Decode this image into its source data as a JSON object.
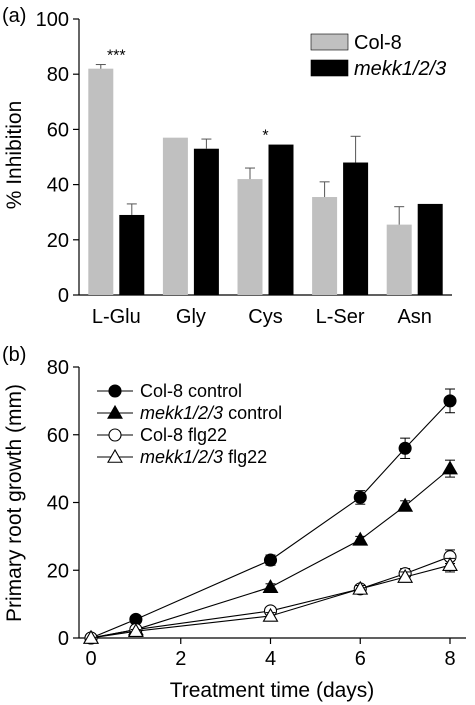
{
  "panels": [
    {
      "label": "(a)",
      "chart_data": {
        "type": "bar",
        "ylabel": "% Inhibition",
        "xlabel": "",
        "ylim": [
          0,
          100
        ],
        "yticks": [
          "0",
          "20",
          "40",
          "60",
          "80",
          "100"
        ],
        "categories": [
          "L-Glu",
          "Gly",
          "Cys",
          "L-Ser",
          "Asn"
        ],
        "series": [
          {
            "name": "Col-8",
            "color": "#c0c0c0",
            "values": [
              82,
              57,
              42,
              35.5,
              25.5
            ],
            "errors": [
              1.5,
              0,
              4,
              5.5,
              6.5
            ]
          },
          {
            "name": "mekk1/2/3",
            "color": "#000000",
            "values": [
              29,
              53,
              54.5,
              48,
              33
            ],
            "errors": [
              4,
              3.5,
              0,
              9.5,
              0
            ]
          }
        ],
        "annotations": [
          {
            "text": "***",
            "category": "L-Glu"
          },
          {
            "text": "*",
            "category": "Cys"
          }
        ],
        "legend": "top-right"
      }
    },
    {
      "label": "(b)",
      "chart_data": {
        "type": "line",
        "xlabel": "Treatment time (days)",
        "ylabel": "Primary root growth (mm)",
        "xlim": [
          0,
          8
        ],
        "ylim": [
          0,
          80
        ],
        "xticks": [
          "0",
          "2",
          "4",
          "6",
          "8"
        ],
        "yticks": [
          "0",
          "20",
          "40",
          "60",
          "80"
        ],
        "x": [
          0,
          1,
          4,
          6,
          7,
          8
        ],
        "series": [
          {
            "name_main": "Col-8",
            "name_suffix": "control",
            "marker": "circle-filled",
            "values": [
              0,
              5.5,
              23,
              41.5,
              56,
              70
            ],
            "errors": [
              0,
              0.8,
              1.5,
              2,
              3,
              3.5
            ]
          },
          {
            "name_main": "mekk1/2/3",
            "name_suffix": "control",
            "marker": "triangle-filled",
            "values": [
              0,
              2.5,
              15,
              29,
              39,
              50
            ],
            "errors": [
              0,
              0.5,
              1,
              1,
              1.5,
              2.5
            ]
          },
          {
            "name_main": "Col-8",
            "name_suffix": "flg22",
            "marker": "circle-open",
            "values": [
              0,
              2.5,
              8,
              14.5,
              19,
              24
            ],
            "errors": [
              0,
              0.5,
              1,
              1,
              1.5,
              2
            ]
          },
          {
            "name_main": "mekk1/2/3",
            "name_suffix": "flg22",
            "marker": "triangle-open",
            "values": [
              0,
              2,
              6.5,
              14.5,
              18,
              21.5
            ],
            "errors": [
              0,
              0.5,
              1,
              1,
              1.5,
              2
            ]
          }
        ],
        "legend": "top-left"
      }
    }
  ]
}
